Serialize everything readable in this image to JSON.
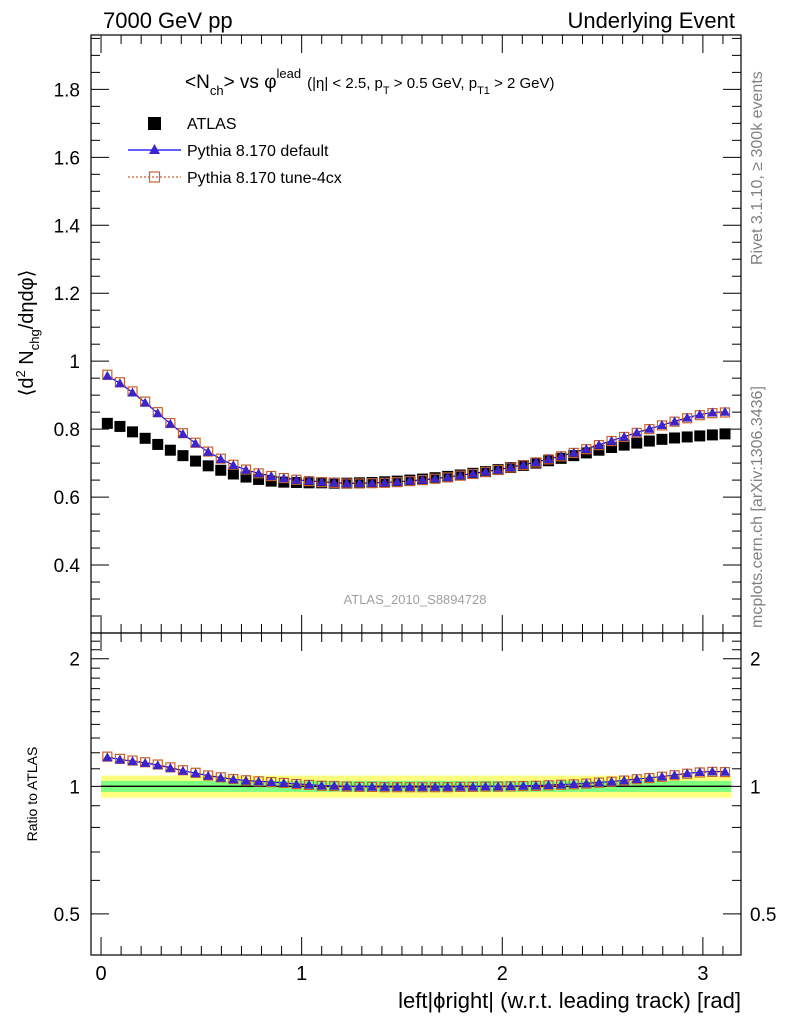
{
  "header": {
    "left": "7000 GeV pp",
    "right": "Underlying Event"
  },
  "side_texts": {
    "rivet": "Rivet 3.1.10, ≥ 300k events",
    "mcplots": "mcplots.cern.ch [arXiv:1306.3436]"
  },
  "watermark": "ATLAS_2010_S8894728",
  "title": {
    "main": "<N",
    "sub_ch": "ch",
    "vs": "> vs φ",
    "sup_lead": "lead",
    "cuts_a": "(|η| < 2.5, p",
    "sub_T": "T",
    "cuts_b": " > 0.5 GeV, p",
    "sub_T1": "T1",
    "cuts_c": " > 2 GeV)"
  },
  "ylabel_main": {
    "a": "⟨d",
    "sup2": "2",
    "b": " N",
    "sub_chg": "chg",
    "c": "/dηdφ⟩"
  },
  "ylabel_ratio": "Ratio to ATLAS",
  "xlabel": "left|ϕright| (w.r.t. leading track) [rad]",
  "legend": [
    {
      "label": "ATLAS",
      "marker": "square-filled",
      "color": "#000000"
    },
    {
      "label": "Pythia 8.170 default",
      "marker": "triangle",
      "color": "#0000ff"
    },
    {
      "label": "Pythia 8.170 tune-4cx",
      "marker": "square-open",
      "color": "#c8612c"
    }
  ],
  "colors": {
    "atlas": "#000000",
    "default": "#0000ff",
    "default_marker": "#3b24c9",
    "tune": "#c8612c",
    "band_outer": "#ffff7f",
    "band_inner": "#7fff7f"
  },
  "chart_data": {
    "type": "scatter",
    "x": [
      0.0314,
      0.0942,
      0.157,
      0.2199,
      0.2827,
      0.3456,
      0.4084,
      0.4712,
      0.5341,
      0.5969,
      0.6597,
      0.7226,
      0.7854,
      0.8482,
      0.9111,
      0.9739,
      1.0367,
      1.0996,
      1.1624,
      1.2252,
      1.2881,
      1.3509,
      1.4137,
      1.4765,
      1.5394,
      1.6022,
      1.665,
      1.7279,
      1.7907,
      1.8535,
      1.9164,
      1.9792,
      2.042,
      2.1049,
      2.1677,
      2.2305,
      2.2934,
      2.3562,
      2.419,
      2.4819,
      2.5447,
      2.6075,
      2.6704,
      2.7332,
      2.796,
      2.8588,
      2.9217,
      2.9845,
      3.0473,
      3.1102
    ],
    "series": [
      {
        "name": "ATLAS",
        "values": [
          0.817,
          0.808,
          0.792,
          0.773,
          0.755,
          0.738,
          0.722,
          0.706,
          0.692,
          0.679,
          0.668,
          0.659,
          0.652,
          0.647,
          0.644,
          0.643,
          0.642,
          0.642,
          0.641,
          0.641,
          0.642,
          0.643,
          0.645,
          0.647,
          0.65,
          0.653,
          0.657,
          0.661,
          0.665,
          0.67,
          0.675,
          0.681,
          0.687,
          0.693,
          0.7,
          0.707,
          0.714,
          0.722,
          0.73,
          0.738,
          0.746,
          0.753,
          0.759,
          0.765,
          0.77,
          0.774,
          0.777,
          0.78,
          0.783,
          0.786
        ]
      },
      {
        "name": "Pythia 8.170 default",
        "values": [
          0.957,
          0.935,
          0.908,
          0.878,
          0.847,
          0.816,
          0.786,
          0.758,
          0.733,
          0.712,
          0.694,
          0.68,
          0.67,
          0.662,
          0.656,
          0.651,
          0.648,
          0.645,
          0.643,
          0.641,
          0.641,
          0.642,
          0.643,
          0.645,
          0.648,
          0.651,
          0.655,
          0.659,
          0.664,
          0.669,
          0.675,
          0.681,
          0.688,
          0.695,
          0.703,
          0.712,
          0.721,
          0.731,
          0.742,
          0.754,
          0.766,
          0.778,
          0.79,
          0.801,
          0.812,
          0.823,
          0.834,
          0.843,
          0.849,
          0.851
        ]
      },
      {
        "name": "Pythia 8.170 tune-4cx",
        "values": [
          0.96,
          0.938,
          0.911,
          0.881,
          0.85,
          0.818,
          0.788,
          0.76,
          0.734,
          0.713,
          0.695,
          0.681,
          0.67,
          0.662,
          0.656,
          0.651,
          0.647,
          0.644,
          0.642,
          0.64,
          0.64,
          0.641,
          0.642,
          0.644,
          0.647,
          0.65,
          0.654,
          0.658,
          0.663,
          0.668,
          0.674,
          0.68,
          0.687,
          0.694,
          0.702,
          0.711,
          0.72,
          0.73,
          0.741,
          0.753,
          0.765,
          0.777,
          0.789,
          0.8,
          0.811,
          0.822,
          0.832,
          0.841,
          0.847,
          0.849
        ]
      }
    ],
    "main_panel": {
      "ylim": [
        0.2,
        1.96
      ],
      "yticks": [
        0.4,
        0.6,
        0.8,
        1,
        1.2,
        1.4,
        1.6,
        1.8
      ],
      "ytick_labels": [
        "0.4",
        "0.6",
        "0.8",
        "1",
        "1.2",
        "1.4",
        "1.6",
        "1.8"
      ]
    },
    "ratio_panel": {
      "scale": "log",
      "ylim": [
        0.4,
        2.3
      ],
      "yticks": [
        0.5,
        1,
        2
      ],
      "ytick_labels": [
        "0.5",
        "1",
        "2"
      ],
      "band_inner": [
        0.97,
        1.03
      ],
      "band_outer": [
        0.94,
        1.06
      ]
    },
    "xlim": [
      -0.05,
      3.19
    ],
    "xticks": [
      0,
      1,
      2,
      3
    ],
    "xtick_labels": [
      "0",
      "1",
      "2",
      "3"
    ],
    "legend_position": "top-left"
  }
}
